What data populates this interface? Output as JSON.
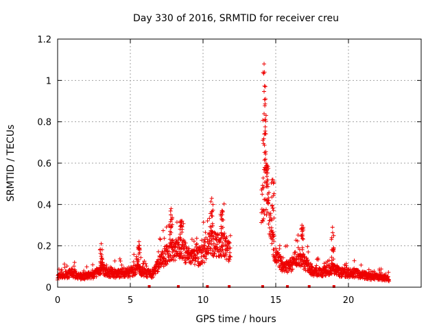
{
  "chart_data": {
    "type": "scatter",
    "title": "Day 330 of 2016, SRMTID for receiver creu",
    "xlabel": "GPS time / hours",
    "ylabel": "SRMTID / TECUs",
    "xlim": [
      0,
      25
    ],
    "ylim": [
      0,
      1.2
    ],
    "x_ticks": [
      0,
      5,
      10,
      15,
      20
    ],
    "x_tick_labels": [
      "0",
      "5",
      "10",
      "15",
      "20"
    ],
    "y_ticks": [
      0,
      0.2,
      0.4,
      0.6,
      0.8,
      1.0,
      1.2
    ],
    "y_tick_labels": [
      "0",
      "0.2",
      "0.4",
      "0.6",
      "0.8",
      "1",
      "1.2"
    ],
    "grid": true,
    "marker": "+",
    "color": "#ee0000",
    "profile": [
      [
        0.0,
        0.05
      ],
      [
        0.5,
        0.06
      ],
      [
        1.0,
        0.07
      ],
      [
        1.5,
        0.05
      ],
      [
        2.0,
        0.055
      ],
      [
        2.5,
        0.06
      ],
      [
        3.0,
        0.09
      ],
      [
        3.5,
        0.07
      ],
      [
        4.0,
        0.065
      ],
      [
        4.5,
        0.07
      ],
      [
        5.0,
        0.07
      ],
      [
        5.5,
        0.09
      ],
      [
        6.0,
        0.07
      ],
      [
        6.5,
        0.06
      ],
      [
        7.0,
        0.12
      ],
      [
        7.5,
        0.16
      ],
      [
        8.0,
        0.18
      ],
      [
        8.5,
        0.19
      ],
      [
        9.0,
        0.15
      ],
      [
        9.5,
        0.14
      ],
      [
        10.0,
        0.16
      ],
      [
        10.5,
        0.22
      ],
      [
        11.0,
        0.2
      ],
      [
        11.5,
        0.2
      ],
      [
        11.8,
        0.17
      ],
      [
        14.0,
        0.35
      ],
      [
        14.3,
        0.55
      ],
      [
        14.6,
        0.3
      ],
      [
        15.0,
        0.15
      ],
      [
        15.5,
        0.1
      ],
      [
        16.0,
        0.1
      ],
      [
        16.5,
        0.15
      ],
      [
        17.0,
        0.12
      ],
      [
        17.5,
        0.08
      ],
      [
        18.0,
        0.07
      ],
      [
        18.5,
        0.08
      ],
      [
        19.0,
        0.09
      ],
      [
        19.5,
        0.07
      ],
      [
        20.0,
        0.07
      ],
      [
        20.5,
        0.065
      ],
      [
        21.0,
        0.06
      ],
      [
        21.5,
        0.05
      ],
      [
        22.0,
        0.05
      ],
      [
        22.5,
        0.045
      ],
      [
        22.8,
        0.04
      ]
    ],
    "peaks": [
      [
        3.0,
        0.21
      ],
      [
        5.6,
        0.22
      ],
      [
        7.8,
        0.38
      ],
      [
        8.5,
        0.32
      ],
      [
        10.6,
        0.43
      ],
      [
        11.3,
        0.37
      ],
      [
        14.2,
        1.08
      ],
      [
        14.3,
        0.91
      ],
      [
        14.4,
        0.59
      ],
      [
        14.8,
        0.52
      ],
      [
        16.8,
        0.3
      ],
      [
        18.9,
        0.29
      ]
    ],
    "gaps_hours": [
      [
        11.9,
        14.0
      ]
    ],
    "bottom_marks": [
      6.3,
      8.3,
      10.3,
      11.8,
      14.1,
      15.8,
      17.3,
      19.0
    ],
    "seed": 7,
    "point_step_hours": 0.012
  }
}
